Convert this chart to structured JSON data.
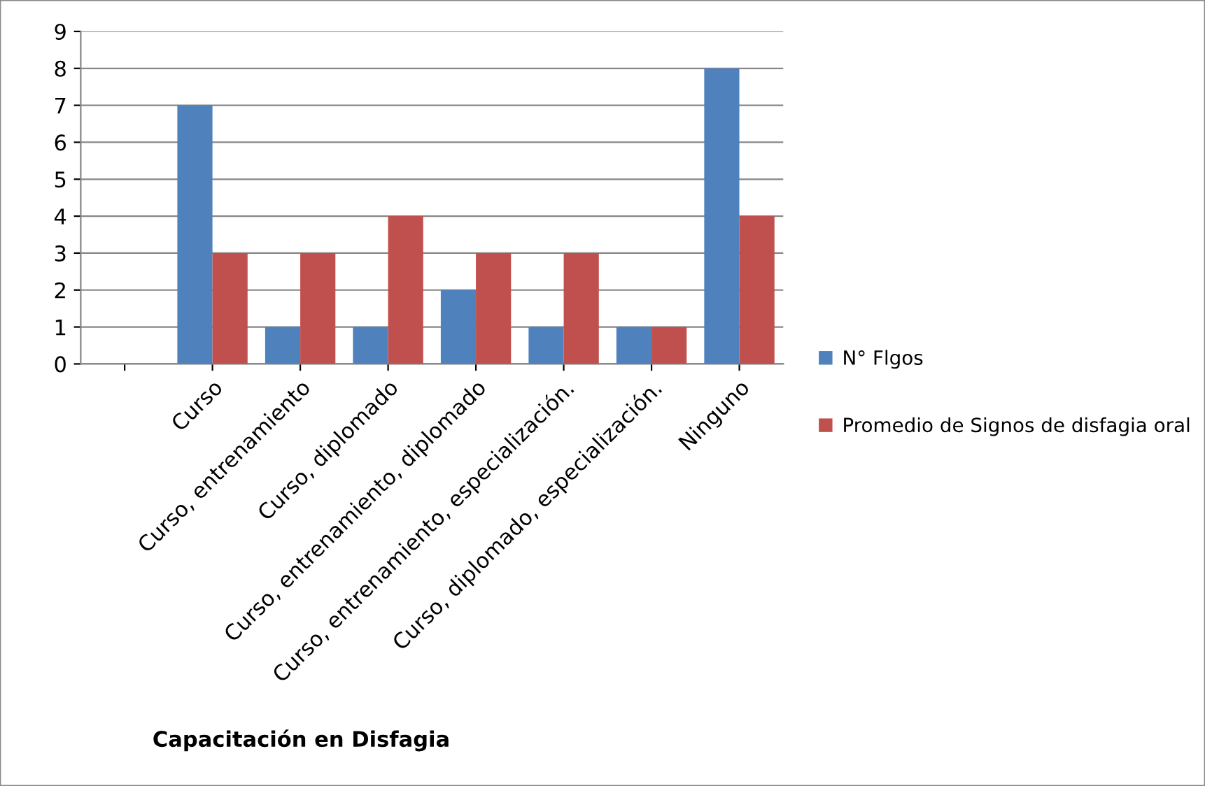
{
  "chart_data": {
    "type": "bar",
    "xlabel": "Capacitación en Disfagia",
    "categories": [
      null,
      "Curso",
      "Curso, entrenamiento",
      "Curso, diplomado",
      "Curso, entrenamiento, diplomado",
      "Curso, entrenamiento, especialización.",
      "Curso, diplomado, especialización.",
      "Ninguno"
    ],
    "series": [
      {
        "name": "N° Flgos",
        "color": "#4f81bd",
        "values": [
          null,
          7,
          1,
          1,
          2,
          1,
          1,
          8
        ]
      },
      {
        "name": "Promedio de Signos de disfagia oral",
        "color": "#c0504d",
        "values": [
          null,
          3,
          3,
          4,
          3,
          3,
          1,
          4
        ]
      }
    ],
    "ylim": [
      0,
      9
    ],
    "yticks": [
      0,
      1,
      2,
      3,
      4,
      5,
      6,
      7,
      8,
      9
    ],
    "grid": "y",
    "legend": "right"
  }
}
